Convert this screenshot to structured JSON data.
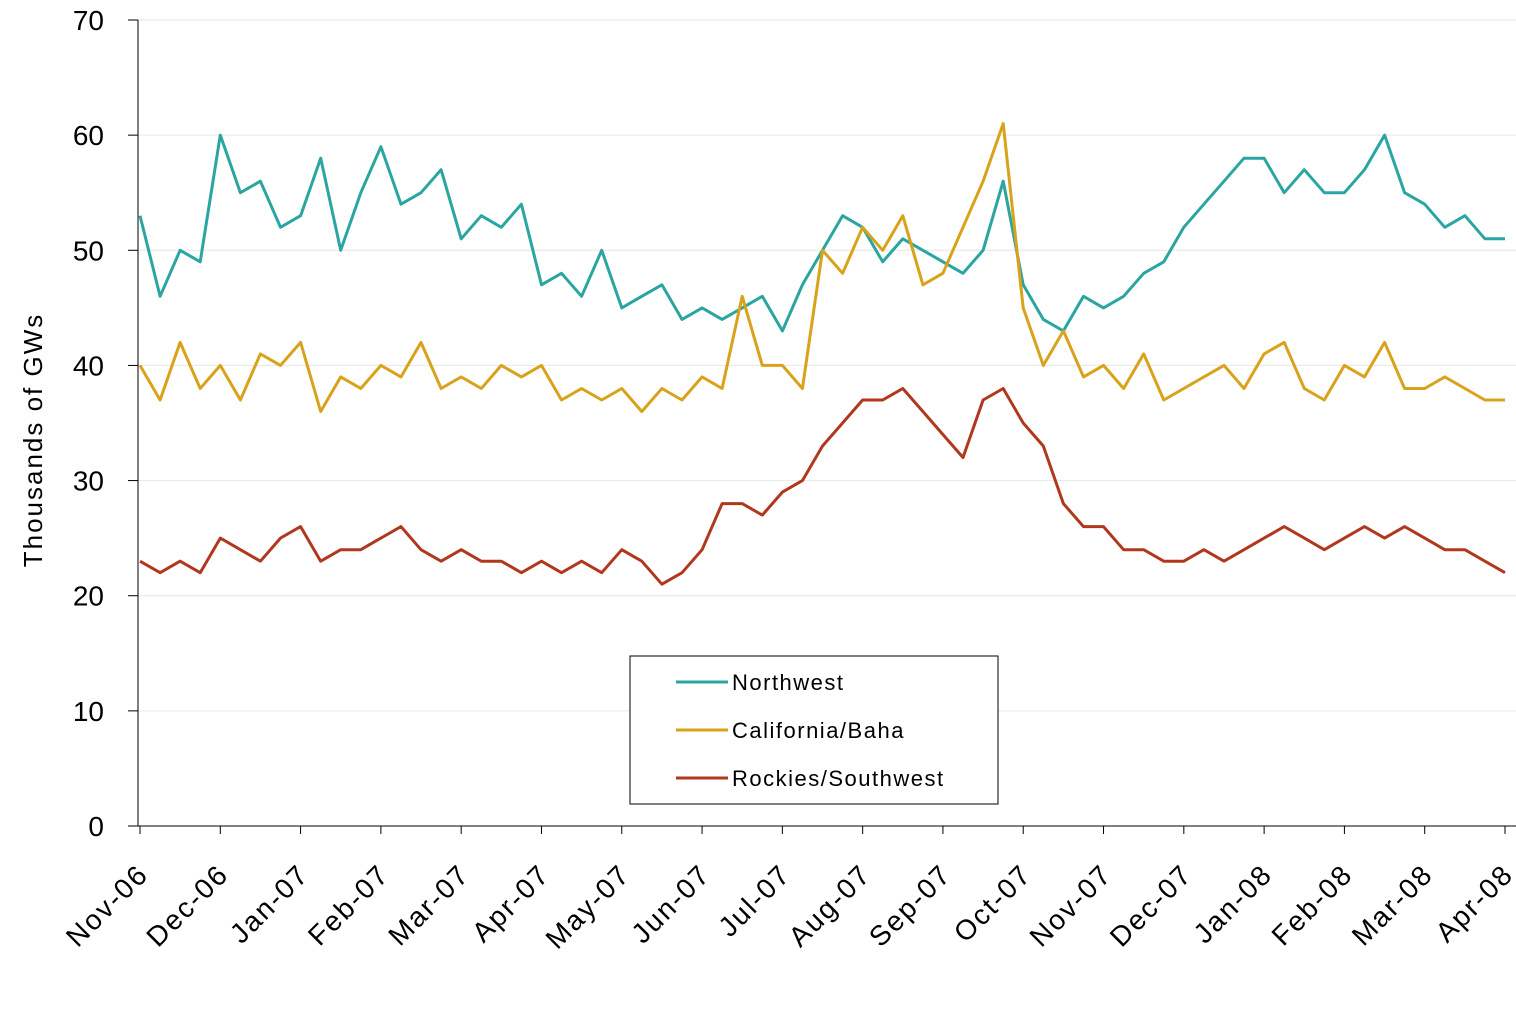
{
  "chart_data": {
    "type": "line",
    "y_label": "Thousands of GWs",
    "categories": [
      "Nov-06",
      null,
      null,
      null,
      "Dec-06",
      null,
      null,
      null,
      "Jan-07",
      null,
      null,
      null,
      "Feb-07",
      null,
      null,
      null,
      "Mar-07",
      null,
      null,
      null,
      "Apr-07",
      null,
      null,
      null,
      "May-07",
      null,
      null,
      null,
      "Jun-07",
      null,
      null,
      null,
      "Jul-07",
      null,
      null,
      null,
      "Aug-07",
      null,
      null,
      null,
      "Sep-07",
      null,
      null,
      null,
      "Oct-07",
      null,
      null,
      null,
      "Nov-07",
      null,
      null,
      null,
      "Dec-07",
      null,
      null,
      null,
      "Jan-08",
      null,
      null,
      null,
      "Feb-08",
      null,
      null,
      null,
      "Mar-08",
      null,
      null,
      null,
      "Apr-08"
    ],
    "series": [
      {
        "name": "Northwest",
        "color": "#2aa5a1",
        "values": [
          53,
          46,
          50,
          49,
          60,
          55,
          56,
          52,
          53,
          58,
          50,
          55,
          59,
          54,
          55,
          57,
          51,
          53,
          52,
          54,
          47,
          48,
          46,
          50,
          45,
          46,
          47,
          44,
          45,
          44,
          45,
          46,
          43,
          47,
          50,
          53,
          52,
          49,
          51,
          50,
          49,
          48,
          50,
          56,
          47,
          44,
          43,
          46,
          45,
          46,
          48,
          49,
          52,
          54,
          56,
          58,
          58,
          55,
          57,
          55,
          55,
          57,
          60,
          55,
          54,
          52,
          53,
          51,
          51
        ]
      },
      {
        "name": "California/Baha",
        "color": "#d9a21b",
        "values": [
          40,
          37,
          42,
          38,
          40,
          37,
          41,
          40,
          42,
          36,
          39,
          38,
          40,
          39,
          42,
          38,
          39,
          38,
          40,
          39,
          40,
          37,
          38,
          37,
          38,
          36,
          38,
          37,
          39,
          38,
          46,
          40,
          40,
          38,
          50,
          48,
          52,
          50,
          53,
          47,
          48,
          52,
          56,
          61,
          45,
          40,
          43,
          39,
          40,
          38,
          41,
          37,
          38,
          39,
          40,
          38,
          41,
          42,
          38,
          37,
          40,
          39,
          42,
          38,
          38,
          39,
          38,
          37,
          37
        ]
      },
      {
        "name": "Rockies/Southwest",
        "color": "#b0381e",
        "values": [
          23,
          22,
          23,
          22,
          25,
          24,
          23,
          25,
          26,
          23,
          24,
          24,
          25,
          26,
          24,
          23,
          24,
          23,
          23,
          22,
          23,
          22,
          23,
          22,
          24,
          23,
          21,
          22,
          24,
          28,
          28,
          27,
          29,
          30,
          33,
          35,
          37,
          37,
          38,
          36,
          34,
          32,
          37,
          38,
          35,
          33,
          28,
          26,
          26,
          24,
          24,
          23,
          23,
          24,
          23,
          24,
          25,
          26,
          25,
          24,
          25,
          26,
          25,
          26,
          25,
          24,
          24,
          23,
          22
        ]
      }
    ],
    "ylim": [
      0,
      70
    ],
    "yticks": [
      0,
      10,
      20,
      30,
      40,
      50,
      60,
      70
    ],
    "grid": true
  }
}
